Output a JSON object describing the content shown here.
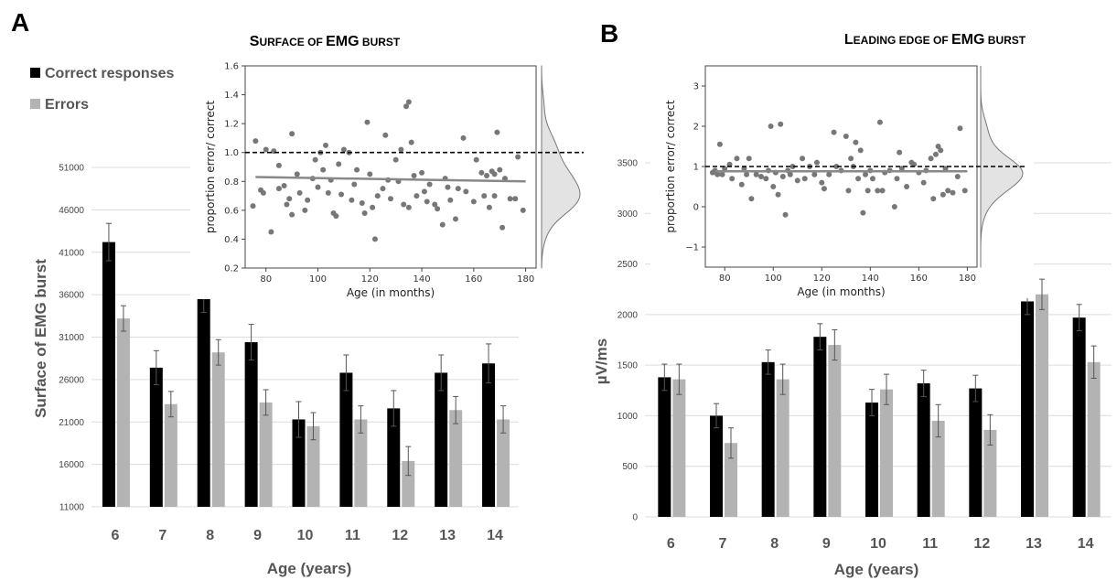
{
  "chart_data": [
    {
      "panel": "A",
      "type": "bar",
      "title_parts": [
        [
          "S",
          "big"
        ],
        [
          "URFACE OF ",
          "small"
        ],
        [
          "EMG",
          "big"
        ],
        [
          " BURST",
          "small"
        ]
      ],
      "title": "Surface of EMG burst",
      "categories": [
        "6",
        "7",
        "8",
        "9",
        "10",
        "11",
        "12",
        "13",
        "14"
      ],
      "series": [
        {
          "name": "Correct responses",
          "color": "#000000",
          "values": [
            42200,
            27400,
            36100,
            30400,
            21300,
            26800,
            22600,
            26800,
            27900
          ],
          "errors": [
            2200,
            2000,
            2200,
            2100,
            2100,
            2100,
            2100,
            2100,
            2300
          ]
        },
        {
          "name": "Errors",
          "color": "#b3b3b3",
          "values": [
            33200,
            23100,
            29200,
            23300,
            20500,
            21300,
            16400,
            22400,
            21300
          ],
          "errors": [
            1500,
            1500,
            1500,
            1500,
            1600,
            1600,
            1700,
            1600,
            1600
          ]
        }
      ],
      "ylim": [
        11000,
        51000
      ],
      "yticks": [
        "11000",
        "16000",
        "21000",
        "26000",
        "31000",
        "36000",
        "41000",
        "46000",
        "51000"
      ],
      "ylabel": "Surface of EMG burst",
      "xlabel": "Age (years)",
      "legend": [
        "Correct responses",
        "Errors"
      ],
      "inset": {
        "type": "scatter",
        "xlabel": "Age (in months)",
        "ylabel": "proportion error/ correct",
        "xlim": [
          72,
          184
        ],
        "ylim": [
          0.2,
          1.6
        ],
        "xticks": [
          "80",
          "100",
          "120",
          "140",
          "160",
          "180"
        ],
        "yticks": [
          "0.2",
          "0.4",
          "0.6",
          "0.8",
          "1.0",
          "1.2",
          "1.4",
          "1.6"
        ],
        "reference_line": 1.0,
        "trend": [
          [
            76,
            0.83
          ],
          [
            180,
            0.8
          ]
        ],
        "points": [
          [
            75,
            0.63
          ],
          [
            76,
            1.08
          ],
          [
            78,
            0.74
          ],
          [
            79,
            0.72
          ],
          [
            80,
            1.02
          ],
          [
            82,
            0.45
          ],
          [
            83,
            1.01
          ],
          [
            85,
            0.91
          ],
          [
            85,
            0.75
          ],
          [
            87,
            0.77
          ],
          [
            88,
            0.64
          ],
          [
            89,
            0.68
          ],
          [
            90,
            1.13
          ],
          [
            90,
            0.57
          ],
          [
            92,
            0.85
          ],
          [
            93,
            0.72
          ],
          [
            95,
            0.6
          ],
          [
            96,
            0.67
          ],
          [
            98,
            0.82
          ],
          [
            99,
            0.95
          ],
          [
            100,
            0.76
          ],
          [
            101,
            1.0
          ],
          [
            102,
            0.88
          ],
          [
            103,
            1.05
          ],
          [
            104,
            0.72
          ],
          [
            105,
            0.81
          ],
          [
            106,
            0.58
          ],
          [
            107,
            0.56
          ],
          [
            108,
            0.92
          ],
          [
            109,
            0.71
          ],
          [
            110,
            1.02
          ],
          [
            112,
            1.0
          ],
          [
            113,
            0.67
          ],
          [
            114,
            0.78
          ],
          [
            115,
            0.88
          ],
          [
            117,
            0.65
          ],
          [
            118,
            0.58
          ],
          [
            119,
            1.21
          ],
          [
            120,
            0.85
          ],
          [
            121,
            0.62
          ],
          [
            122,
            0.4
          ],
          [
            123,
            0.7
          ],
          [
            125,
            0.75
          ],
          [
            126,
            1.12
          ],
          [
            127,
            0.81
          ],
          [
            128,
            0.68
          ],
          [
            130,
            0.95
          ],
          [
            131,
            0.8
          ],
          [
            132,
            1.02
          ],
          [
            133,
            0.64
          ],
          [
            134,
            1.32
          ],
          [
            135,
            1.35
          ],
          [
            135,
            0.62
          ],
          [
            136,
            1.07
          ],
          [
            137,
            0.84
          ],
          [
            138,
            0.7
          ],
          [
            140,
            0.86
          ],
          [
            141,
            0.73
          ],
          [
            142,
            0.66
          ],
          [
            143,
            0.78
          ],
          [
            145,
            0.64
          ],
          [
            146,
            0.61
          ],
          [
            148,
            0.5
          ],
          [
            149,
            0.82
          ],
          [
            150,
            0.76
          ],
          [
            151,
            0.67
          ],
          [
            153,
            0.54
          ],
          [
            154,
            0.75
          ],
          [
            156,
            1.1
          ],
          [
            157,
            0.73
          ],
          [
            160,
            0.66
          ],
          [
            161,
            0.95
          ],
          [
            163,
            0.86
          ],
          [
            164,
            0.7
          ],
          [
            165,
            0.84
          ],
          [
            166,
            0.62
          ],
          [
            167,
            0.87
          ],
          [
            168,
            0.85
          ],
          [
            168,
            0.7
          ],
          [
            169,
            1.14
          ],
          [
            170,
            0.88
          ],
          [
            171,
            0.48
          ],
          [
            172,
            0.82
          ],
          [
            174,
            0.68
          ],
          [
            176,
            0.68
          ],
          [
            177,
            0.97
          ],
          [
            179,
            0.6
          ]
        ]
      }
    },
    {
      "panel": "B",
      "type": "bar",
      "title_parts": [
        [
          "L",
          "big"
        ],
        [
          "EADING EDGE OF ",
          "small"
        ],
        [
          "EMG",
          "big"
        ],
        [
          " BURST",
          "small"
        ]
      ],
      "title": "Leading edge of EMG burst",
      "categories": [
        "6",
        "7",
        "8",
        "9",
        "10",
        "11",
        "12",
        "13",
        "14"
      ],
      "series": [
        {
          "name": "Correct responses",
          "color": "#000000",
          "values": [
            1380,
            1000,
            1530,
            1780,
            1130,
            1320,
            1270,
            2130,
            1970
          ],
          "errors": [
            130,
            120,
            120,
            130,
            130,
            130,
            130,
            130,
            130
          ]
        },
        {
          "name": "Errors",
          "color": "#b3b3b3",
          "values": [
            1360,
            730,
            1360,
            1700,
            1260,
            950,
            860,
            2200,
            1530
          ],
          "errors": [
            150,
            150,
            150,
            150,
            150,
            160,
            150,
            150,
            160
          ]
        }
      ],
      "ylim": [
        0,
        3500
      ],
      "yticks": [
        "0",
        "500",
        "1000",
        "1500",
        "2000",
        "2500",
        "3000",
        "3500"
      ],
      "ylabel": "µV/ms",
      "xlabel": "Age (years)",
      "inset": {
        "type": "scatter",
        "xlabel": "Age (in months)",
        "ylabel": "proportion error/ correct",
        "xlim": [
          72,
          184
        ],
        "ylim": [
          -1.5,
          3.5
        ],
        "xticks": [
          "80",
          "100",
          "120",
          "140",
          "160",
          "180"
        ],
        "yticks": [
          "−1",
          "0",
          "1",
          "2",
          "3"
        ],
        "reference_line": 1.0,
        "trend": [
          [
            76,
            0.88
          ],
          [
            180,
            0.88
          ]
        ],
        "points": [
          [
            75,
            0.85
          ],
          [
            76,
            0.9
          ],
          [
            77,
            0.8
          ],
          [
            78,
            1.55
          ],
          [
            79,
            0.8
          ],
          [
            80,
            0.95
          ],
          [
            82,
            1.05
          ],
          [
            83,
            0.7
          ],
          [
            85,
            1.2
          ],
          [
            87,
            0.55
          ],
          [
            88,
            0.95
          ],
          [
            89,
            0.8
          ],
          [
            90,
            1.2
          ],
          [
            91,
            0.2
          ],
          [
            93,
            0.8
          ],
          [
            95,
            0.75
          ],
          [
            97,
            0.7
          ],
          [
            98,
            0.9
          ],
          [
            99,
            2.0
          ],
          [
            100,
            0.5
          ],
          [
            101,
            0.85
          ],
          [
            102,
            0.3
          ],
          [
            103,
            2.05
          ],
          [
            104,
            0.75
          ],
          [
            105,
            -0.2
          ],
          [
            106,
            0.9
          ],
          [
            107,
            0.8
          ],
          [
            108,
            1.0
          ],
          [
            110,
            0.65
          ],
          [
            112,
            1.2
          ],
          [
            113,
            0.7
          ],
          [
            115,
            1.0
          ],
          [
            117,
            0.8
          ],
          [
            118,
            1.1
          ],
          [
            120,
            0.6
          ],
          [
            121,
            0.45
          ],
          [
            123,
            0.8
          ],
          [
            125,
            1.85
          ],
          [
            126,
            1.0
          ],
          [
            128,
            0.9
          ],
          [
            130,
            1.75
          ],
          [
            131,
            0.4
          ],
          [
            132,
            1.2
          ],
          [
            133,
            1.0
          ],
          [
            134,
            1.6
          ],
          [
            135,
            0.7
          ],
          [
            136,
            1.4
          ],
          [
            137,
            -0.15
          ],
          [
            138,
            0.8
          ],
          [
            139,
            0.4
          ],
          [
            140,
            0.9
          ],
          [
            141,
            0.7
          ],
          [
            143,
            0.4
          ],
          [
            144,
            2.1
          ],
          [
            145,
            0.4
          ],
          [
            146,
            0.85
          ],
          [
            148,
            0.9
          ],
          [
            150,
            0.0
          ],
          [
            151,
            0.7
          ],
          [
            152,
            1.35
          ],
          [
            153,
            0.95
          ],
          [
            155,
            0.5
          ],
          [
            157,
            1.1
          ],
          [
            158,
            1.05
          ],
          [
            160,
            0.85
          ],
          [
            162,
            0.6
          ],
          [
            163,
            0.9
          ],
          [
            165,
            1.2
          ],
          [
            166,
            0.2
          ],
          [
            167,
            1.3
          ],
          [
            168,
            1.5
          ],
          [
            169,
            1.4
          ],
          [
            170,
            0.3
          ],
          [
            171,
            0.95
          ],
          [
            172,
            0.4
          ],
          [
            174,
            0.35
          ],
          [
            176,
            0.75
          ],
          [
            177,
            1.95
          ],
          [
            179,
            0.4
          ]
        ]
      }
    }
  ]
}
